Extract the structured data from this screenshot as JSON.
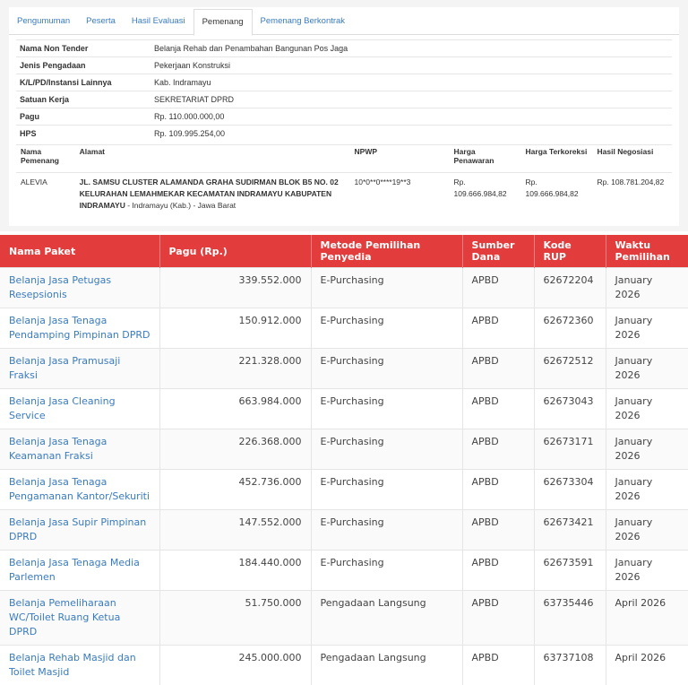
{
  "tabs": [
    "Pengumuman",
    "Peserta",
    "Hasil Evaluasi",
    "Pemenang",
    "Pemenang Berkontrak"
  ],
  "active_tab": 3,
  "info": [
    {
      "label": "Nama Non Tender",
      "value": "Belanja Rehab dan Penambahan Bangunan Pos Jaga"
    },
    {
      "label": "Jenis Pengadaan",
      "value": "Pekerjaan Konstruksi"
    },
    {
      "label": "K/L/PD/Instansi Lainnya",
      "value": "Kab. Indramayu"
    },
    {
      "label": "Satuan Kerja",
      "value": "SEKRETARIAT DPRD"
    },
    {
      "label": "Pagu",
      "value": "Rp. 110.000.000,00"
    },
    {
      "label": "HPS",
      "value": "Rp. 109.995.254,00"
    }
  ],
  "winner": {
    "headers": [
      "Nama Pemenang",
      "Alamat",
      "NPWP",
      "Harga Penawaran",
      "Harga Terkoreksi",
      "Hasil Negosiasi"
    ],
    "name": "ALEVIA",
    "address_street": "JL. SAMSU CLUSTER ALAMANDA GRAHA SUDIRMAN BLOK B5 NO. 02 KELURAHAN LEMAHMEKAR KECAMATAN INDRAMAYU KABUPATEN INDRAMAYU",
    "address_region": "- Indramayu (Kab.) - Jawa Barat",
    "npwp": "10*0**0****19**3",
    "prices": [
      "Rp. 109.666.984,82",
      "Rp. 109.666.984,82",
      "Rp. 108.781.204,82"
    ]
  },
  "packages": {
    "headers": [
      "Nama Paket",
      "Pagu (Rp.)",
      "Metode Pemilihan Penyedia",
      "Sumber Dana",
      "Kode RUP",
      "Waktu Pemilihan"
    ],
    "rows": [
      [
        "Belanja Jasa Petugas Resepsionis",
        "339.552.000",
        "E-Purchasing",
        "APBD",
        "62672204",
        "January 2026"
      ],
      [
        "Belanja Jasa Tenaga Pendamping Pimpinan DPRD",
        "150.912.000",
        "E-Purchasing",
        "APBD",
        "62672360",
        "January 2026"
      ],
      [
        "Belanja Jasa Pramusaji Fraksi",
        "221.328.000",
        "E-Purchasing",
        "APBD",
        "62672512",
        "January 2026"
      ],
      [
        "Belanja Jasa Cleaning Service",
        "663.984.000",
        "E-Purchasing",
        "APBD",
        "62673043",
        "January 2026"
      ],
      [
        "Belanja Jasa Tenaga Keamanan Fraksi",
        "226.368.000",
        "E-Purchasing",
        "APBD",
        "62673171",
        "January 2026"
      ],
      [
        "Belanja Jasa Tenaga Pengamanan Kantor/Sekuriti",
        "452.736.000",
        "E-Purchasing",
        "APBD",
        "62673304",
        "January 2026"
      ],
      [
        "Belanja Jasa Supir Pimpinan DPRD",
        "147.552.000",
        "E-Purchasing",
        "APBD",
        "62673421",
        "January 2026"
      ],
      [
        "Belanja Jasa Tenaga Media Parlemen",
        "184.440.000",
        "E-Purchasing",
        "APBD",
        "62673591",
        "January 2026"
      ],
      [
        "Belanja Pemeliharaan WC/Toilet Ruang Ketua DPRD",
        "51.750.000",
        "Pengadaan Langsung",
        "APBD",
        "63735446",
        "April 2026"
      ],
      [
        "Belanja Rehab Masjid dan Toilet Masjid",
        "245.000.000",
        "Pengadaan Langsung",
        "APBD",
        "63737108",
        "April 2026"
      ]
    ]
  }
}
